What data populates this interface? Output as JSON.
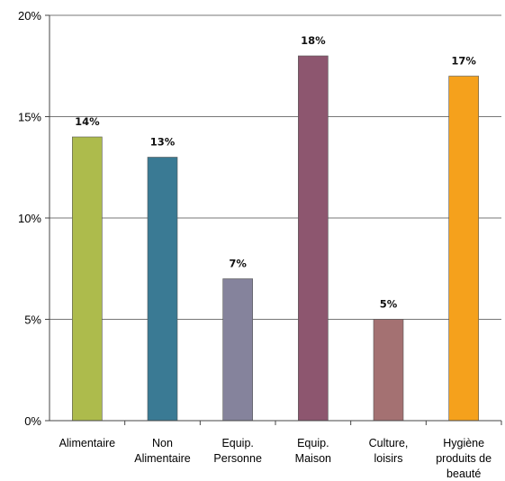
{
  "chart_data": {
    "type": "bar",
    "title": "",
    "xlabel": "",
    "ylabel": "",
    "ylim": [
      0,
      20
    ],
    "yticks": [
      0,
      5,
      10,
      15,
      20
    ],
    "ytick_labels": [
      "0%",
      "5%",
      "10%",
      "15%",
      "20%"
    ],
    "grid": true,
    "categories": [
      [
        "Alimentaire"
      ],
      [
        "Non",
        "Alimentaire"
      ],
      [
        "Equip.",
        "Personne"
      ],
      [
        "Equip.",
        "Maison"
      ],
      [
        "Culture,",
        "loisirs"
      ],
      [
        "Hygiène",
        "produits de",
        "beauté"
      ]
    ],
    "values": [
      14,
      13,
      7,
      18,
      5,
      17
    ],
    "data_labels": [
      "14%",
      "13%",
      "7%",
      "18%",
      "5%",
      "17%"
    ],
    "colors": [
      "#adbb4c",
      "#3a7a94",
      "#85839c",
      "#8d566f",
      "#a47172",
      "#f5a11c"
    ]
  }
}
